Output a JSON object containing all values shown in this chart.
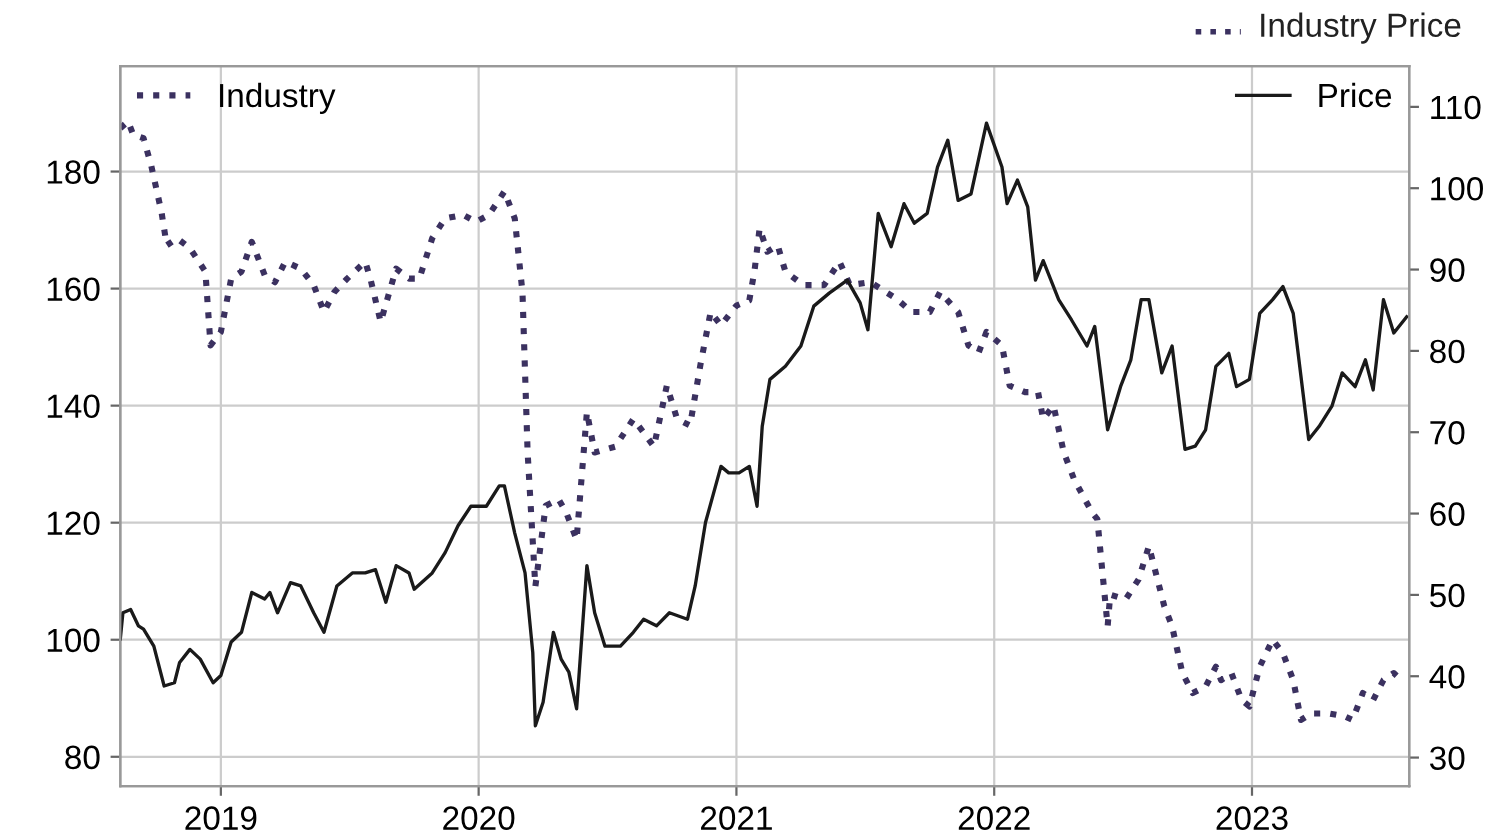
{
  "chart_data": {
    "type": "line",
    "xlim": [
      2018.61,
      2023.61
    ],
    "xticks": [
      2019,
      2020,
      2021,
      2022,
      2023
    ],
    "ylim": [
      75,
      198
    ],
    "yticks": [
      80,
      100,
      120,
      140,
      160,
      180
    ],
    "y2lim": [
      26.5,
      115
    ],
    "y2ticks": [
      30,
      40,
      50,
      60,
      70,
      80,
      90,
      100,
      110
    ],
    "grid": true,
    "legend": "top",
    "annotations": [
      "Industry Price"
    ],
    "series": [
      {
        "name": "Industry",
        "color": "#3b3160",
        "line_style": "dotted",
        "x": [
          2018.61,
          2018.64,
          2018.66,
          2018.7,
          2018.73,
          2018.77,
          2018.79,
          2018.83,
          2018.88,
          2018.94,
          2018.96,
          2019.0,
          2019.04,
          2019.08,
          2019.12,
          2019.17,
          2019.21,
          2019.25,
          2019.31,
          2019.36,
          2019.4,
          2019.44,
          2019.49,
          2019.56,
          2019.58,
          2019.62,
          2019.68,
          2019.73,
          2019.77,
          2019.82,
          2019.87,
          2019.94,
          2019.99,
          2020.04,
          2020.1,
          2020.14,
          2020.17,
          2020.19,
          2020.22,
          2020.26,
          2020.31,
          2020.34,
          2020.38,
          2020.42,
          2020.45,
          2020.53,
          2020.6,
          2020.64,
          2020.68,
          2020.73,
          2020.77,
          2020.82,
          2020.86,
          2020.9,
          2020.94,
          2021.0,
          2021.05,
          2021.07,
          2021.09,
          2021.12,
          2021.16,
          2021.19,
          2021.26,
          2021.34,
          2021.4,
          2021.44,
          2021.52,
          2021.58,
          2021.62,
          2021.68,
          2021.75,
          2021.79,
          2021.86,
          2021.9,
          2021.94,
          2021.97,
          2022.03,
          2022.06,
          2022.12,
          2022.17,
          2022.19,
          2022.23,
          2022.27,
          2022.31,
          2022.38,
          2022.4,
          2022.44,
          2022.45,
          2022.51,
          2022.56,
          2022.6,
          2022.62,
          2022.66,
          2022.69,
          2022.73,
          2022.77,
          2022.82,
          2022.86,
          2022.88,
          2022.92,
          2022.96,
          2022.99,
          2023.03,
          2023.08,
          2023.12,
          2023.16,
          2023.19,
          2023.23,
          2023.3,
          2023.36,
          2023.39,
          2023.43,
          2023.47,
          2023.51,
          2023.55,
          2023.58
        ],
        "values": [
          187.4,
          188.6,
          186.3,
          185.7,
          181,
          173,
          167.4,
          168.6,
          166.9,
          162.9,
          150.3,
          152.6,
          161.7,
          162.9,
          168,
          162.3,
          161.1,
          164.6,
          163.4,
          160.6,
          156,
          159.4,
          161.7,
          164.6,
          161.7,
          154.3,
          163.4,
          161.7,
          161.7,
          168.6,
          172,
          172.6,
          171.4,
          172.6,
          176.6,
          172,
          159.4,
          132,
          109.1,
          122.9,
          124,
          121.7,
          117.1,
          138.9,
          132,
          133,
          137.7,
          135.4,
          133,
          143.4,
          137.7,
          136.6,
          146.9,
          156,
          153.7,
          157.1,
          158,
          163,
          170.3,
          166.3,
          167.4,
          162.9,
          160.6,
          160.6,
          164.6,
          160.6,
          161.1,
          159.4,
          158.3,
          156,
          156,
          159.4,
          156,
          150.3,
          149.1,
          152.6,
          150.3,
          143.4,
          142.3,
          142.3,
          137.7,
          140,
          132,
          127.4,
          121.7,
          120.6,
          102.3,
          107.7,
          106.9,
          110.3,
          116,
          112.6,
          105.7,
          102.3,
          94.3,
          90.9,
          92,
          95.4,
          93.1,
          94.3,
          89.7,
          88.6,
          95.4,
          100,
          97.7,
          93.1,
          86.3,
          87.4,
          87.4,
          86.9,
          86.3,
          90.9,
          89.7,
          93.1,
          94.3,
          93.1
        ]
      },
      {
        "name": "Price",
        "color": "#1a1a1a",
        "line_style": "solid",
        "axis": "y2",
        "x": [
          2018.61,
          2018.62,
          2018.65,
          2018.68,
          2018.7,
          2018.74,
          2018.78,
          2018.82,
          2018.84,
          2018.88,
          2018.92,
          2018.97,
          2019.0,
          2019.04,
          2019.08,
          2019.12,
          2019.17,
          2019.19,
          2019.22,
          2019.27,
          2019.31,
          2019.36,
          2019.4,
          2019.45,
          2019.51,
          2019.56,
          2019.6,
          2019.64,
          2019.68,
          2019.73,
          2019.75,
          2019.82,
          2019.87,
          2019.92,
          2019.97,
          2020.03,
          2020.08,
          2020.1,
          2020.14,
          2020.18,
          2020.21,
          2020.22,
          2020.25,
          2020.29,
          2020.32,
          2020.35,
          2020.38,
          2020.42,
          2020.45,
          2020.49,
          2020.55,
          2020.6,
          2020.64,
          2020.69,
          2020.74,
          2020.81,
          2020.84,
          2020.88,
          2020.94,
          2020.97,
          2021.01,
          2021.05,
          2021.08,
          2021.1,
          2021.13,
          2021.19,
          2021.25,
          2021.3,
          2021.36,
          2021.43,
          2021.48,
          2021.51,
          2021.55,
          2021.6,
          2021.65,
          2021.69,
          2021.74,
          2021.78,
          2021.82,
          2021.86,
          2021.91,
          2021.97,
          2022.03,
          2022.05,
          2022.09,
          2022.13,
          2022.16,
          2022.19,
          2022.25,
          2022.3,
          2022.36,
          2022.39,
          2022.44,
          2022.49,
          2022.53,
          2022.57,
          2022.6,
          2022.65,
          2022.69,
          2022.74,
          2022.78,
          2022.82,
          2022.86,
          2022.91,
          2022.94,
          2022.99,
          2023.03,
          2023.08,
          2023.12,
          2023.16,
          2023.22,
          2023.26,
          2023.31,
          2023.35,
          2023.4,
          2023.44,
          2023.47,
          2023.51,
          2023.55,
          2023.6
        ],
        "values": [
          44.6,
          47.8,
          48.2,
          46.2,
          45.8,
          43.7,
          38.8,
          39.2,
          41.7,
          43.3,
          42.1,
          39.2,
          40.1,
          44.2,
          45.4,
          50.3,
          49.5,
          50.3,
          47.8,
          51.5,
          51.1,
          47.8,
          45.4,
          51.1,
          52.7,
          52.7,
          53.1,
          49.1,
          53.6,
          52.7,
          50.7,
          52.7,
          55.2,
          58.5,
          60.9,
          60.9,
          63.4,
          63.4,
          57.6,
          52.7,
          42.9,
          33.9,
          36.8,
          45.4,
          42.1,
          40.5,
          36,
          53.6,
          47.8,
          43.7,
          43.7,
          45.4,
          47,
          46.2,
          47.8,
          47,
          51.1,
          58.9,
          65.8,
          65,
          65,
          65.8,
          60.9,
          70.7,
          76.5,
          78.1,
          80.6,
          85.5,
          87.1,
          88.7,
          85.9,
          82.6,
          96.9,
          92.8,
          98.1,
          95.7,
          96.9,
          102.6,
          105.9,
          98.5,
          99.3,
          108,
          102.6,
          98.1,
          101,
          97.7,
          88.7,
          91.1,
          86.3,
          83.8,
          80.6,
          83,
          70.3,
          75.6,
          78.9,
          86.3,
          86.3,
          77.3,
          80.6,
          67.9,
          68.3,
          70.3,
          78.1,
          79.7,
          75.6,
          76.5,
          84.6,
          86.3,
          87.9,
          84.6,
          69.1,
          70.7,
          73.2,
          77.3,
          75.6,
          78.9,
          75.2,
          86.3,
          82.2,
          84.2
        ]
      }
    ]
  }
}
